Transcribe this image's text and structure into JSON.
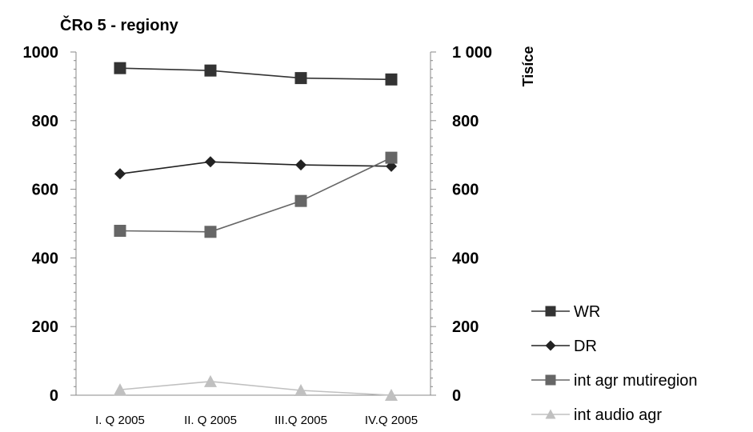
{
  "chart_data": {
    "type": "line",
    "title": "ČRo 5 - regiony",
    "categories": [
      "I. Q 2005",
      "II. Q 2005",
      "III.Q 2005",
      "IV.Q 2005"
    ],
    "y_left": {
      "ylim": [
        0,
        1000
      ],
      "ticks": [
        0,
        200,
        400,
        600,
        800,
        1000
      ],
      "tick_labels": [
        "0",
        "200",
        "400",
        "600",
        "800",
        "1000"
      ]
    },
    "y_right": {
      "label": "Tisíce",
      "ylim": [
        0,
        1000
      ],
      "ticks": [
        0,
        200,
        400,
        600,
        800,
        1000
      ],
      "tick_labels": [
        "0",
        "200",
        "400",
        "600",
        "800",
        "1 000"
      ]
    },
    "grid": false,
    "legend_position": "right",
    "series": [
      {
        "name": "WR",
        "marker": "square",
        "color": "#333333",
        "values": [
          953,
          946,
          924,
          920
        ]
      },
      {
        "name": "DR",
        "marker": "diamond",
        "color": "#222222",
        "values": [
          645,
          680,
          671,
          667
        ]
      },
      {
        "name": "int agr mutiregion",
        "marker": "square",
        "color": "#666666",
        "values": [
          479,
          476,
          566,
          692
        ]
      },
      {
        "name": "int audio agr",
        "marker": "triangle",
        "color": "#c0c0c0",
        "values": [
          16,
          40,
          14,
          0
        ]
      }
    ]
  }
}
